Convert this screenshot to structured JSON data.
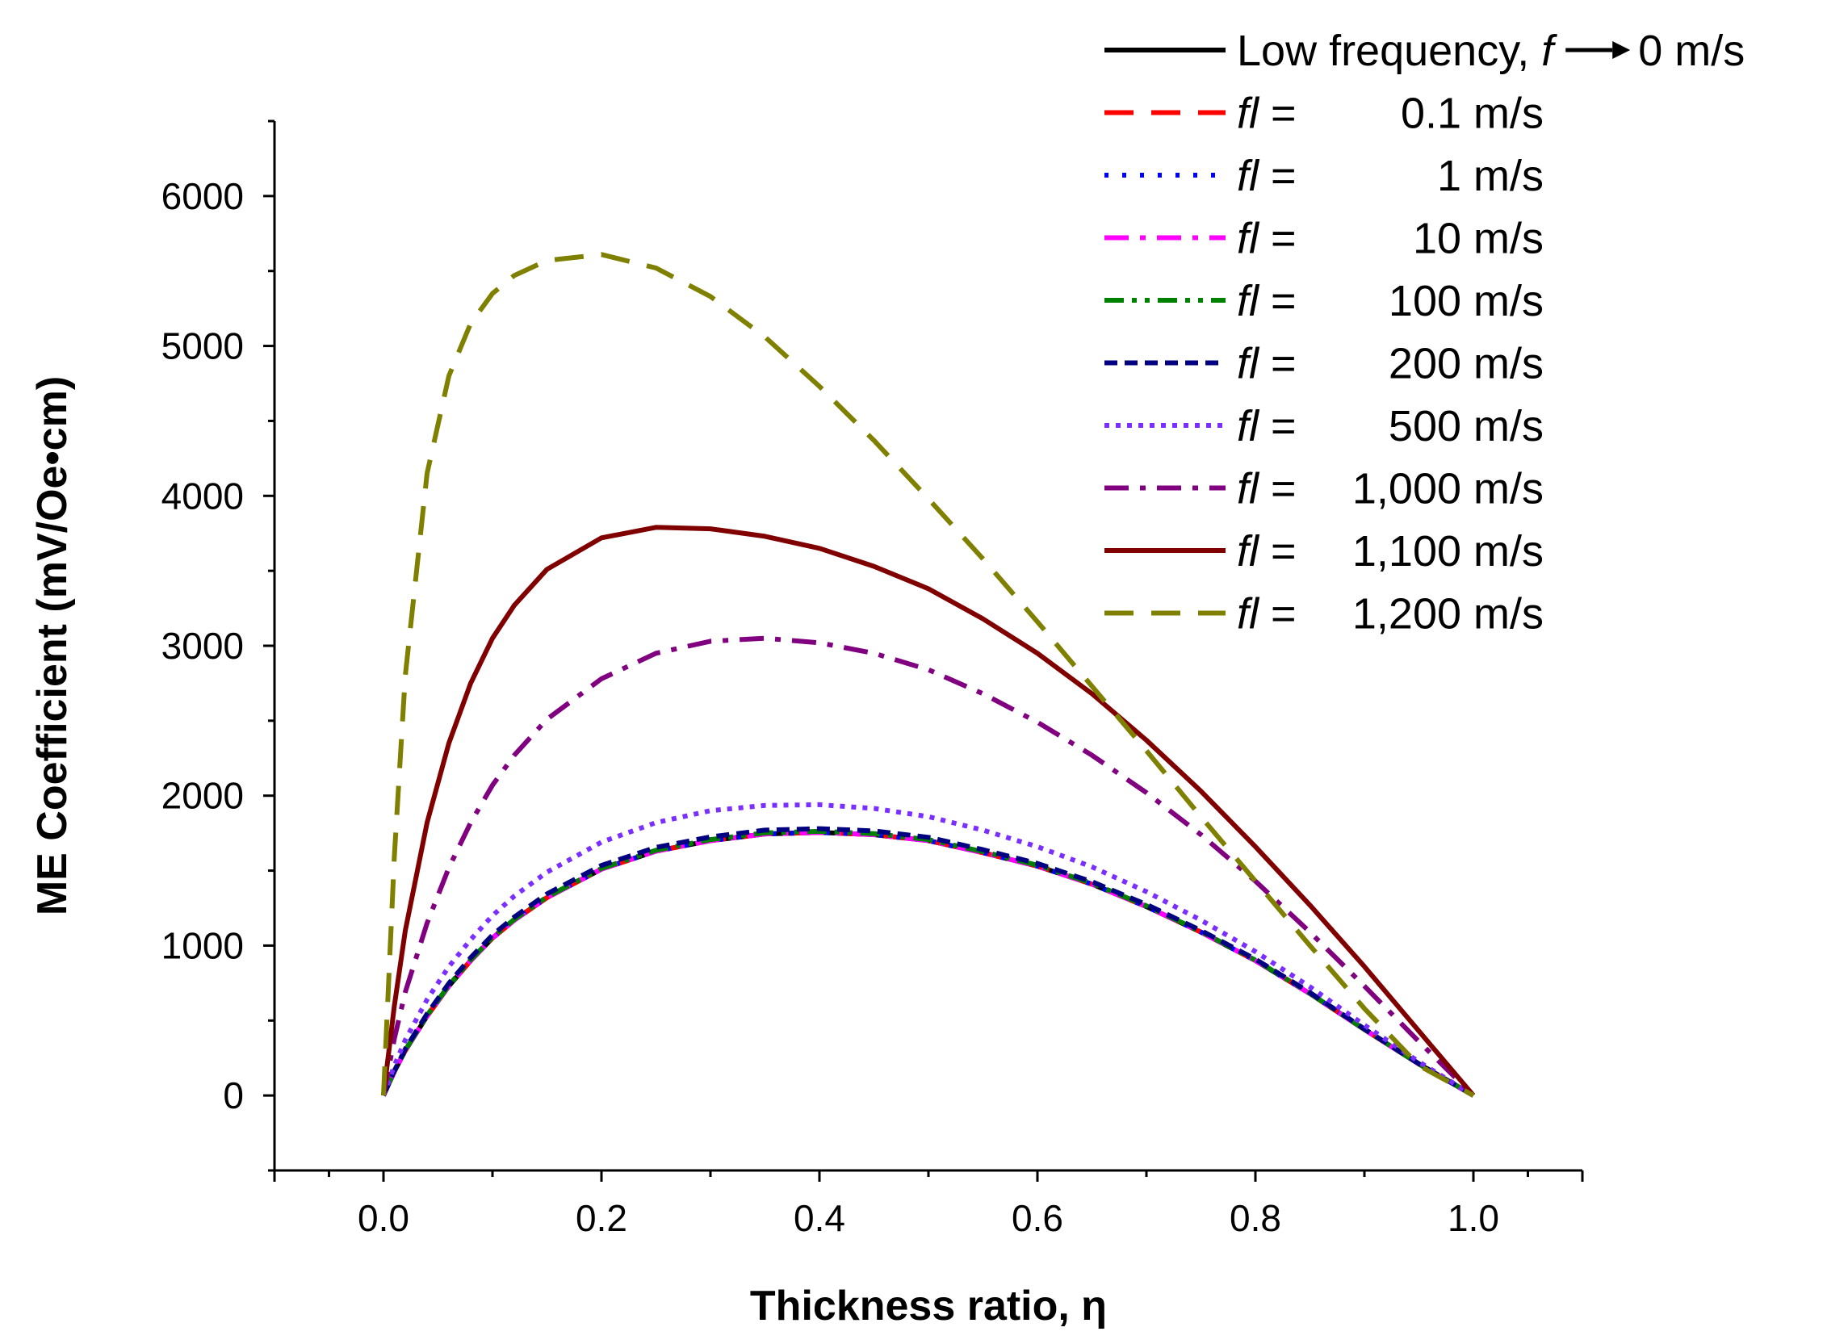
{
  "chart_data": {
    "type": "line",
    "title": "",
    "xlabel": "Thickness ratio, η",
    "ylabel": "ME Coefficient (mV/Oe•cm)",
    "xlim": [
      -0.1,
      1.1
    ],
    "ylim": [
      -500,
      6500
    ],
    "xticks": [
      0.0,
      0.2,
      0.4,
      0.6,
      0.8,
      1.0
    ],
    "xtick_labels": [
      "0.0",
      "0.2",
      "0.4",
      "0.6",
      "0.8",
      "1.0"
    ],
    "yticks": [
      0,
      1000,
      2000,
      3000,
      4000,
      5000,
      6000
    ],
    "ytick_labels": [
      "0",
      "1000",
      "2000",
      "3000",
      "4000",
      "5000",
      "6000"
    ],
    "legend_position": "top-right",
    "x": [
      0.0,
      0.01,
      0.02,
      0.04,
      0.06,
      0.08,
      0.1,
      0.12,
      0.15,
      0.2,
      0.25,
      0.3,
      0.35,
      0.4,
      0.45,
      0.5,
      0.55,
      0.6,
      0.65,
      0.7,
      0.75,
      0.8,
      0.85,
      0.9,
      0.95,
      1.0
    ],
    "series": [
      {
        "name": "Low frequency, f → 0 m/s",
        "label_pre": "Low frequency, ",
        "label_var": "f",
        "label_arrow": true,
        "label_value": "0 m/s",
        "color": "#000000",
        "dash": "solid",
        "values": [
          0,
          160,
          300,
          530,
          730,
          900,
          1050,
          1170,
          1320,
          1510,
          1630,
          1700,
          1745,
          1755,
          1740,
          1700,
          1620,
          1530,
          1410,
          1260,
          1090,
          900,
          680,
          440,
          210,
          0
        ]
      },
      {
        "name": "fl = 0.1 m/s",
        "label_var": "fl",
        "label_eq": " =",
        "label_value": "0.1 m/s",
        "color": "#ff0000",
        "dash": "long-dash",
        "values": [
          0,
          160,
          300,
          530,
          730,
          900,
          1050,
          1170,
          1320,
          1510,
          1630,
          1700,
          1745,
          1755,
          1740,
          1700,
          1620,
          1530,
          1410,
          1260,
          1090,
          900,
          680,
          440,
          210,
          0
        ]
      },
      {
        "name": "fl = 1 m/s",
        "label_var": "fl",
        "label_eq": " =",
        "label_value": "1 m/s",
        "color": "#0000ff",
        "dash": "dot",
        "values": [
          0,
          160,
          300,
          530,
          730,
          900,
          1050,
          1170,
          1320,
          1510,
          1630,
          1700,
          1745,
          1755,
          1740,
          1700,
          1620,
          1530,
          1410,
          1260,
          1090,
          900,
          680,
          440,
          210,
          0
        ]
      },
      {
        "name": "fl = 10 m/s",
        "label_var": "fl",
        "label_eq": " =",
        "label_value": "10 m/s",
        "color": "#ff00ff",
        "dash": "dash-dot",
        "values": [
          0,
          160,
          300,
          530,
          730,
          900,
          1050,
          1170,
          1320,
          1510,
          1630,
          1700,
          1745,
          1755,
          1740,
          1700,
          1620,
          1530,
          1410,
          1260,
          1090,
          900,
          680,
          440,
          210,
          0
        ]
      },
      {
        "name": "fl = 100 m/s",
        "label_var": "fl",
        "label_eq": " =",
        "label_value": "100 m/s",
        "color": "#008000",
        "dash": "dash-dot-dot",
        "values": [
          0,
          162,
          303,
          535,
          735,
          905,
          1055,
          1175,
          1325,
          1515,
          1636,
          1707,
          1752,
          1762,
          1747,
          1707,
          1627,
          1536,
          1416,
          1265,
          1094,
          903,
          682,
          441,
          211,
          0
        ]
      },
      {
        "name": "fl = 200 m/s",
        "label_var": "fl",
        "label_eq": " =",
        "label_value": "200 m/s",
        "color": "#000080",
        "dash": "short-dash",
        "values": [
          0,
          165,
          310,
          545,
          748,
          920,
          1070,
          1190,
          1345,
          1535,
          1655,
          1725,
          1770,
          1780,
          1765,
          1722,
          1640,
          1548,
          1426,
          1274,
          1101,
          909,
          687,
          444,
          212,
          0
        ]
      },
      {
        "name": "fl = 500 m/s",
        "label_var": "fl",
        "label_eq": " =",
        "label_value": "500 m/s",
        "color": "#7b2fff",
        "dash": "short-dot",
        "values": [
          0,
          200,
          370,
          640,
          860,
          1040,
          1200,
          1330,
          1490,
          1690,
          1820,
          1900,
          1935,
          1940,
          1915,
          1860,
          1770,
          1660,
          1525,
          1360,
          1170,
          960,
          725,
          470,
          225,
          0
        ]
      },
      {
        "name": "fl = 1,000 m/s",
        "label_var": "fl",
        "label_eq": " = ",
        "label_value": "1,000 m/s",
        "color": "#800080",
        "dash": "dash-dot",
        "values": [
          0,
          380,
          690,
          1150,
          1520,
          1820,
          2070,
          2270,
          2510,
          2780,
          2950,
          3030,
          3050,
          3020,
          2950,
          2840,
          2680,
          2490,
          2270,
          2020,
          1740,
          1430,
          1090,
          730,
          360,
          0
        ]
      },
      {
        "name": "fl = 1,100 m/s",
        "label_var": "fl",
        "label_eq": " = ",
        "label_value": "1,100 m/s",
        "color": "#800000",
        "dash": "solid",
        "values": [
          0,
          600,
          1100,
          1820,
          2350,
          2750,
          3050,
          3270,
          3510,
          3720,
          3790,
          3780,
          3730,
          3650,
          3530,
          3380,
          3180,
          2950,
          2680,
          2370,
          2030,
          1660,
          1270,
          860,
          430,
          0
        ]
      },
      {
        "name": "fl = 1,200 m/s",
        "label_var": "fl",
        "label_eq": " = ",
        "label_value": "1,200 m/s",
        "color": "#808000",
        "dash": "long-dash",
        "values": [
          0,
          1600,
          2800,
          4150,
          4800,
          5150,
          5350,
          5470,
          5570,
          5610,
          5520,
          5330,
          5060,
          4730,
          4370,
          3980,
          3580,
          3160,
          2730,
          2300,
          1860,
          1430,
          1000,
          580,
          200,
          0
        ]
      }
    ]
  }
}
